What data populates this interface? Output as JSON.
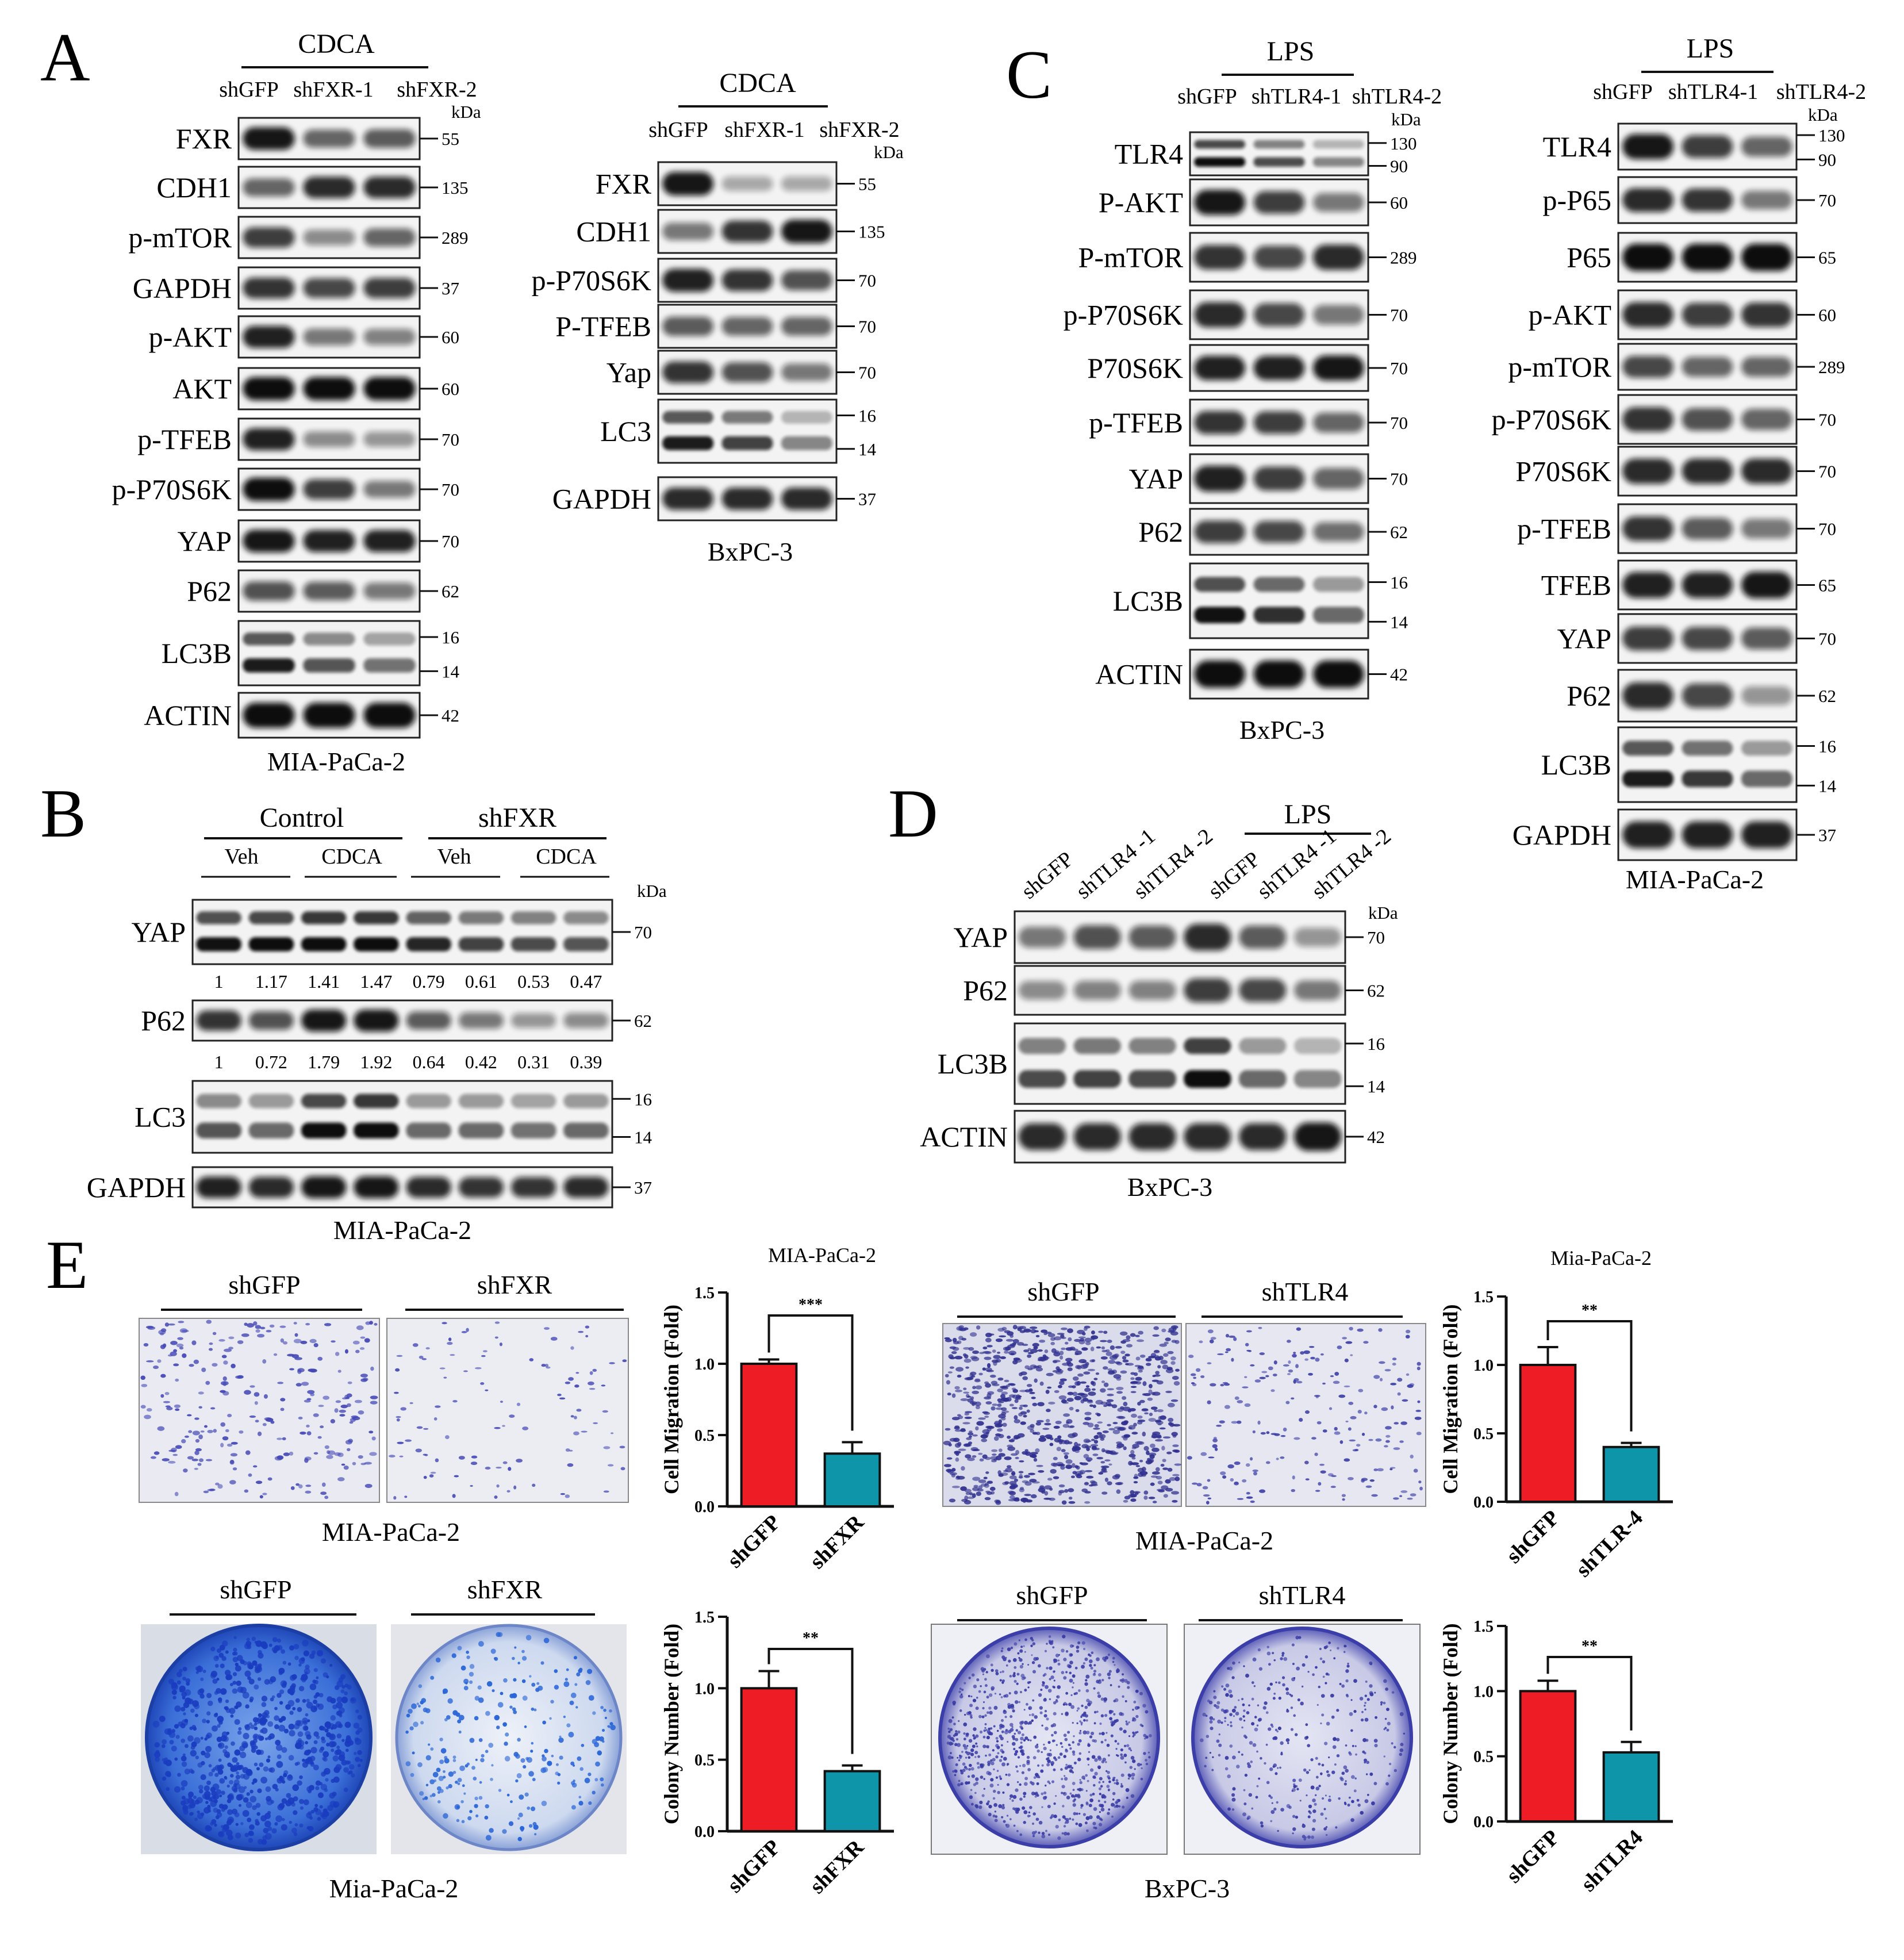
{
  "panel_labels": [
    "A",
    "B",
    "C",
    "D",
    "E"
  ],
  "panel_A": {
    "left": {
      "treatment": "CDCA",
      "lanes": [
        "shGFP",
        "shFXR-1",
        "shFXR-2"
      ],
      "kda_unit": "kDa",
      "blots": [
        {
          "protein": "FXR",
          "kda": [
            "55"
          ]
        },
        {
          "protein": "CDH1",
          "kda": [
            "135"
          ]
        },
        {
          "protein": "p-mTOR",
          "kda": [
            "289"
          ]
        },
        {
          "protein": "GAPDH",
          "kda": [
            "37"
          ]
        },
        {
          "protein": "p-AKT",
          "kda": [
            "60"
          ]
        },
        {
          "protein": "AKT",
          "kda": [
            "60"
          ]
        },
        {
          "protein": "p-TFEB",
          "kda": [
            "70"
          ]
        },
        {
          "protein": "p-P70S6K",
          "kda": [
            "70"
          ]
        },
        {
          "protein": "YAP",
          "kda": [
            "70"
          ]
        },
        {
          "protein": "P62",
          "kda": [
            "62"
          ]
        },
        {
          "protein": "LC3B",
          "kda": [
            "16",
            "14"
          ]
        },
        {
          "protein": "ACTIN",
          "kda": [
            "42"
          ]
        }
      ],
      "cell_line": "MIA-PaCa-2"
    },
    "right": {
      "treatment": "CDCA",
      "lanes": [
        "shGFP",
        "shFXR-1",
        "shFXR-2"
      ],
      "kda_unit": "kDa",
      "blots": [
        {
          "protein": "FXR",
          "kda": [
            "55"
          ]
        },
        {
          "protein": "CDH1",
          "kda": [
            "135"
          ]
        },
        {
          "protein": "p-P70S6K",
          "kda": [
            "70"
          ]
        },
        {
          "protein": "P-TFEB",
          "kda": [
            "70"
          ]
        },
        {
          "protein": "Yap",
          "kda": [
            "70"
          ]
        },
        {
          "protein": "LC3",
          "kda": [
            "16",
            "14"
          ]
        },
        {
          "protein": "GAPDH",
          "kda": [
            "37"
          ]
        }
      ],
      "cell_line": "BxPC-3"
    }
  },
  "panel_B": {
    "groups": [
      "Control",
      "shFXR"
    ],
    "subgroups": [
      "Veh",
      "CDCA",
      "Veh",
      "CDCA"
    ],
    "kda_unit": "kDa",
    "blots": [
      {
        "protein": "YAP",
        "kda": [
          "70"
        ]
      },
      {
        "protein": "P62",
        "kda": [
          "62"
        ]
      },
      {
        "protein": "LC3",
        "kda": [
          "16",
          "14"
        ]
      },
      {
        "protein": "GAPDH",
        "kda": [
          "37"
        ]
      }
    ],
    "yap_quant": [
      "1",
      "1.17",
      "1.41",
      "1.47",
      "0.79",
      "0.61",
      "0.53",
      "0.47"
    ],
    "p62_quant": [
      "1",
      "0.72",
      "1.79",
      "1.92",
      "0.64",
      "0.42",
      "0.31",
      "0.39"
    ],
    "cell_line": "MIA-PaCa-2"
  },
  "panel_C": {
    "left": {
      "treatment": "LPS",
      "lanes": [
        "shGFP",
        "shTLR4-1",
        "shTLR4-2"
      ],
      "kda_unit": "kDa",
      "blots": [
        {
          "protein": "TLR4",
          "kda": [
            "130",
            "90"
          ]
        },
        {
          "protein": "P-AKT",
          "kda": [
            "60"
          ]
        },
        {
          "protein": "P-mTOR",
          "kda": [
            "289"
          ]
        },
        {
          "protein": "p-P70S6K",
          "kda": [
            "70"
          ]
        },
        {
          "protein": "P70S6K",
          "kda": [
            "70"
          ]
        },
        {
          "protein": "p-TFEB",
          "kda": [
            "70"
          ]
        },
        {
          "protein": "YAP",
          "kda": [
            "70"
          ]
        },
        {
          "protein": "P62",
          "kda": [
            "62"
          ]
        },
        {
          "protein": "LC3B",
          "kda": [
            "16",
            "14"
          ]
        },
        {
          "protein": "ACTIN",
          "kda": [
            "42"
          ]
        }
      ],
      "cell_line": "BxPC-3"
    },
    "right": {
      "treatment": "LPS",
      "lanes": [
        "shGFP",
        "shTLR4-1",
        "shTLR4-2"
      ],
      "kda_unit": "kDa",
      "blots": [
        {
          "protein": "TLR4",
          "kda": [
            "130",
            "90"
          ]
        },
        {
          "protein": "p-P65",
          "kda": [
            "70"
          ]
        },
        {
          "protein": "P65",
          "kda": [
            "65"
          ]
        },
        {
          "protein": "p-AKT",
          "kda": [
            "60"
          ]
        },
        {
          "protein": "p-mTOR",
          "kda": [
            "289"
          ]
        },
        {
          "protein": "p-P70S6K",
          "kda": [
            "70"
          ]
        },
        {
          "protein": "P70S6K",
          "kda": [
            "70"
          ]
        },
        {
          "protein": "p-TFEB",
          "kda": [
            "70"
          ]
        },
        {
          "protein": "TFEB",
          "kda": [
            "65"
          ]
        },
        {
          "protein": "YAP",
          "kda": [
            "70"
          ]
        },
        {
          "protein": "P62",
          "kda": [
            "62"
          ]
        },
        {
          "protein": "LC3B",
          "kda": [
            "16",
            "14"
          ]
        },
        {
          "protein": "GAPDH",
          "kda": [
            "37"
          ]
        }
      ],
      "cell_line": "MIA-PaCa-2"
    }
  },
  "panel_D": {
    "treatment": "LPS",
    "lanes": [
      "shGFP",
      "shTLR4 -1",
      "shTLR4 -2",
      "shGFP",
      "shTLR4 -1",
      "shTLR4 -2"
    ],
    "kda_unit": "kDa",
    "blots": [
      {
        "protein": "YAP",
        "kda": [
          "70"
        ]
      },
      {
        "protein": "P62",
        "kda": [
          "62"
        ]
      },
      {
        "protein": "LC3B",
        "kda": [
          "16",
          "14"
        ]
      },
      {
        "protein": "ACTIN",
        "kda": [
          "42"
        ]
      }
    ],
    "cell_line": "BxPC-3"
  },
  "panel_E": {
    "migration_fxr": {
      "labels": [
        "shGFP",
        "shFXR"
      ],
      "cell_line": "MIA-PaCa-2"
    },
    "migration_tlr4": {
      "labels": [
        "shGFP",
        "shTLR4"
      ],
      "cell_line": "MIA-PaCa-2"
    },
    "colony_fxr": {
      "labels": [
        "shGFP",
        "shFXR"
      ],
      "cell_line": "Mia-PaCa-2"
    },
    "colony_tlr4": {
      "labels": [
        "shGFP",
        "shTLR4"
      ],
      "cell_line": "BxPC-3"
    }
  },
  "colors": {
    "control_bar": "#ee1c24",
    "knockdown_bar": "#0e95a9",
    "stain": "#3d3ec0",
    "colony_stain": "#2f62d8",
    "band": "#111111"
  },
  "chart_data": [
    {
      "type": "bar",
      "title": "MIA-PaCa-2",
      "ylabel": "Cell Migration (Fold)",
      "categories": [
        "shGFP",
        "shFXR"
      ],
      "values": [
        1.0,
        0.37
      ],
      "error": [
        0.03,
        0.08
      ],
      "ylim": [
        0,
        1.5
      ],
      "yticks": [
        "0.0",
        "0.5",
        "1.0",
        "1.5"
      ],
      "significance": "***",
      "colors": [
        "#ee1c24",
        "#0e95a9"
      ]
    },
    {
      "type": "bar",
      "title": "Mia-PaCa-2",
      "ylabel": "Cell Migration (Fold)",
      "categories": [
        "shGFP",
        "shTLR-4"
      ],
      "values": [
        1.0,
        0.4
      ],
      "error": [
        0.13,
        0.03
      ],
      "ylim": [
        0,
        1.5
      ],
      "yticks": [
        "0.0",
        "0.5",
        "1.0",
        "1.5"
      ],
      "significance": "**",
      "colors": [
        "#ee1c24",
        "#0e95a9"
      ]
    },
    {
      "type": "bar",
      "title": "",
      "ylabel": "Colony Number (Fold)",
      "categories": [
        "shGFP",
        "shFXR"
      ],
      "values": [
        1.0,
        0.42
      ],
      "error": [
        0.12,
        0.04
      ],
      "ylim": [
        0,
        1.5
      ],
      "yticks": [
        "0.0",
        "0.5",
        "1.0",
        "1.5"
      ],
      "significance": "**",
      "colors": [
        "#ee1c24",
        "#0e95a9"
      ]
    },
    {
      "type": "bar",
      "title": "",
      "ylabel": "Colony Number (Fold)",
      "categories": [
        "shGFP",
        "shTLR4"
      ],
      "values": [
        1.0,
        0.53
      ],
      "error": [
        0.08,
        0.08
      ],
      "ylim": [
        0,
        1.5
      ],
      "yticks": [
        "0.0",
        "0.5",
        "1.0",
        "1.5"
      ],
      "significance": "**",
      "colors": [
        "#ee1c24",
        "#0e95a9"
      ]
    }
  ]
}
